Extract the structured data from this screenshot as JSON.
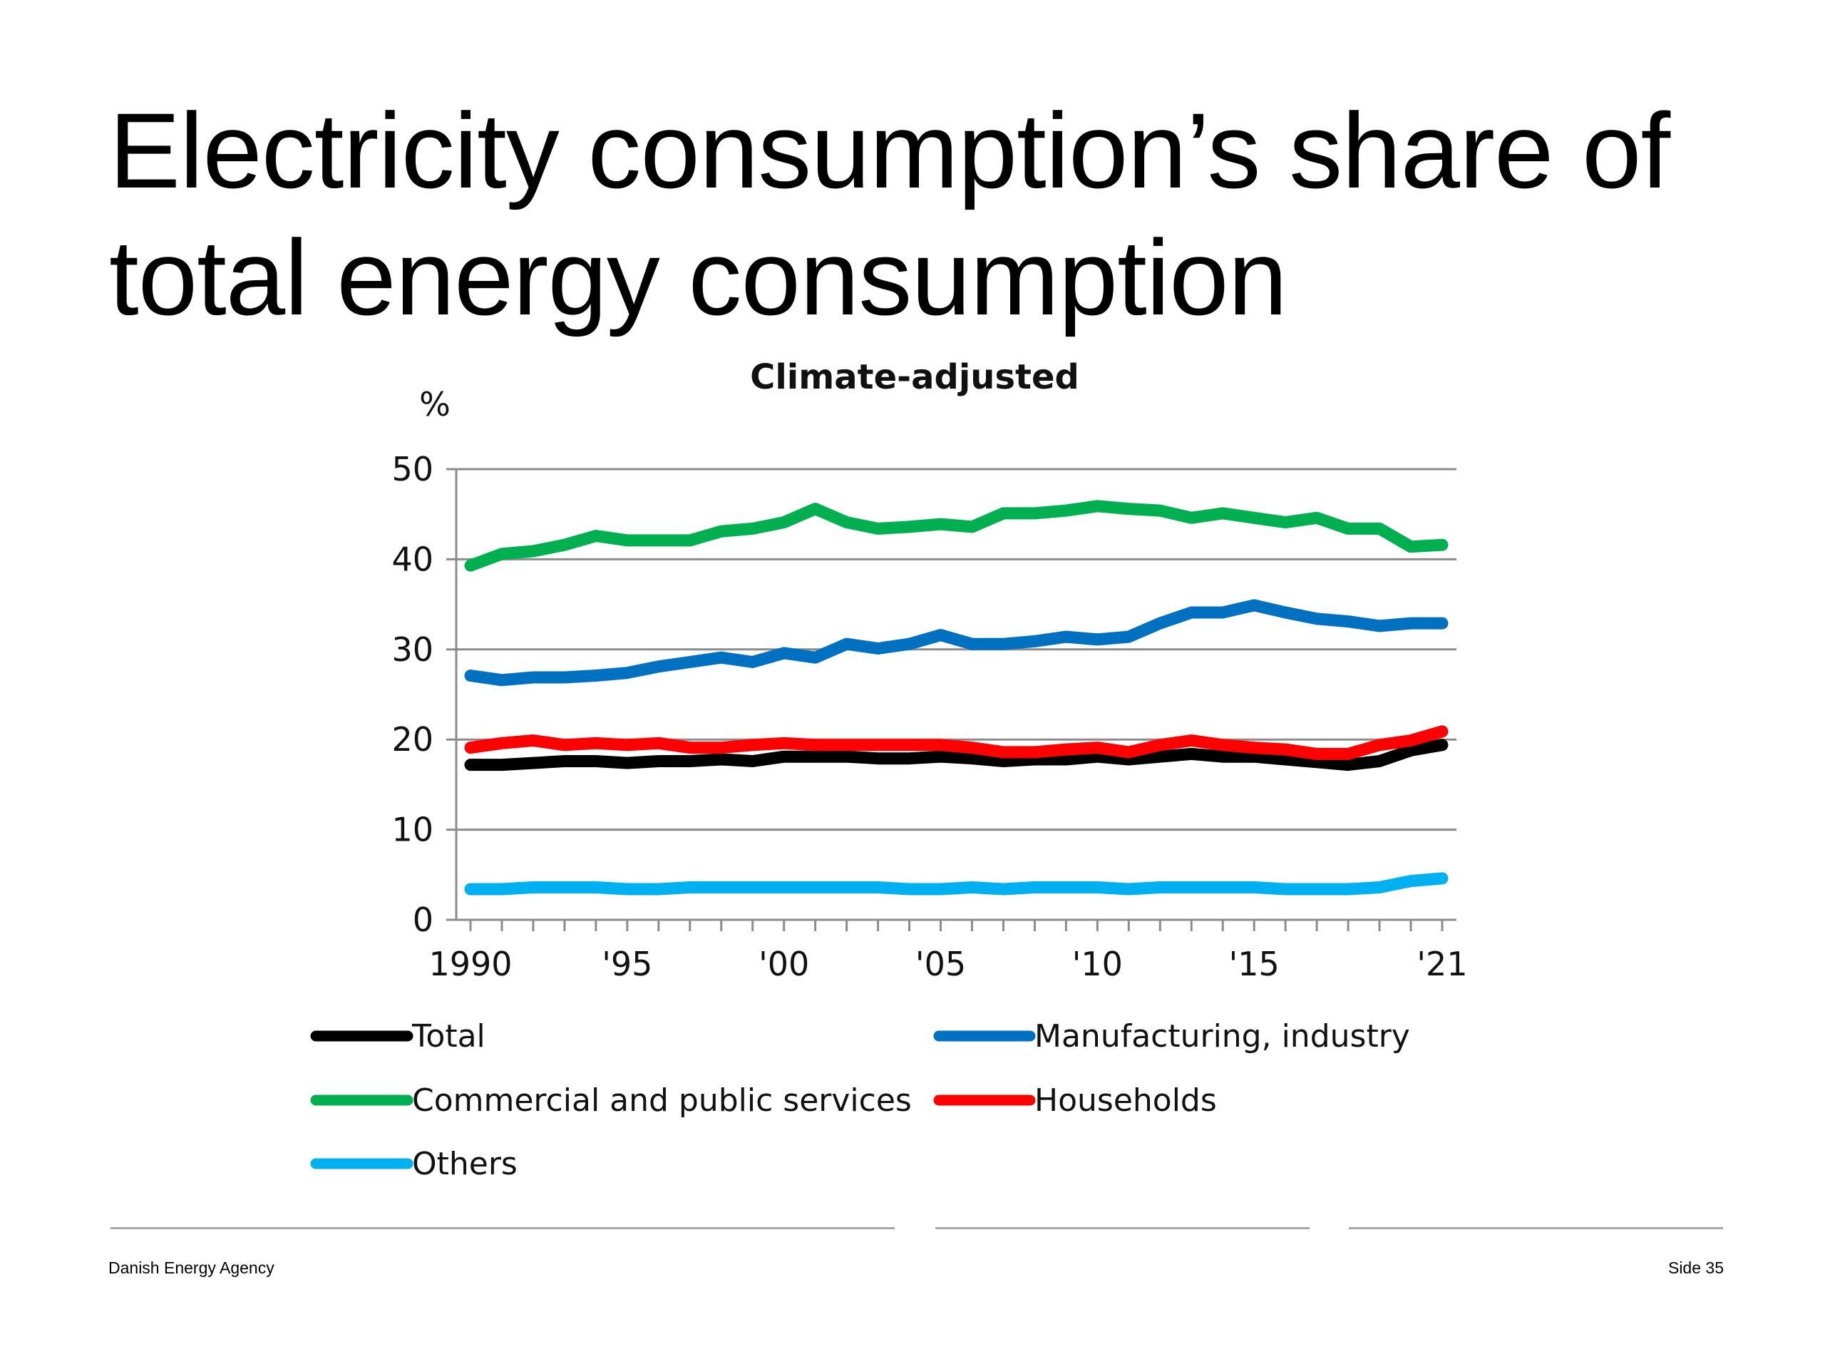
{
  "slide": {
    "title_line1": "Electricity consumption’s share of",
    "title_line2": "total energy consumption"
  },
  "footer": {
    "organization": "Danish Energy Agency",
    "page": "Side 35"
  },
  "chart_data": {
    "type": "line",
    "title": "Climate-adjusted",
    "ylabel": "%",
    "xlabel": "",
    "ylim": [
      0,
      50
    ],
    "yticks": [
      0,
      10,
      20,
      30,
      40,
      50
    ],
    "xlim": [
      1990,
      2021
    ],
    "xtick_years": [
      1990,
      1995,
      2000,
      2005,
      2010,
      2015,
      2021
    ],
    "xtick_labels": [
      "1990",
      "'95",
      "'00",
      "'05",
      "'10",
      "'15",
      "'21"
    ],
    "x": [
      1990,
      1991,
      1992,
      1993,
      1994,
      1995,
      1996,
      1997,
      1998,
      1999,
      2000,
      2001,
      2002,
      2003,
      2004,
      2005,
      2006,
      2007,
      2008,
      2009,
      2010,
      2011,
      2012,
      2013,
      2014,
      2015,
      2016,
      2017,
      2018,
      2019,
      2020,
      2021
    ],
    "grid": "horizontal",
    "legend_position": "bottom",
    "series": [
      {
        "name": "Total",
        "color": "#000000",
        "values": [
          17.2,
          17.2,
          17.4,
          17.6,
          17.6,
          17.4,
          17.6,
          17.6,
          17.8,
          17.6,
          18.1,
          18.1,
          18.1,
          17.9,
          17.9,
          18.1,
          17.9,
          17.6,
          17.8,
          17.8,
          18.1,
          17.8,
          18.1,
          18.4,
          18.1,
          18.1,
          17.8,
          17.5,
          17.2,
          17.6,
          18.8,
          19.4
        ]
      },
      {
        "name": "Manufacturing, industry",
        "color": "#0070c0",
        "values": [
          27.1,
          26.6,
          26.9,
          26.9,
          27.1,
          27.4,
          28.1,
          28.6,
          29.1,
          28.6,
          29.6,
          29.1,
          30.6,
          30.1,
          30.6,
          31.6,
          30.6,
          30.6,
          30.9,
          31.4,
          31.1,
          31.4,
          32.9,
          34.1,
          34.1,
          34.9,
          34.1,
          33.4,
          33.1,
          32.6,
          32.9,
          32.9
        ]
      },
      {
        "name": "Commercial and public services",
        "color": "#00b050",
        "values": [
          39.3,
          40.6,
          40.9,
          41.6,
          42.6,
          42.1,
          42.1,
          42.1,
          43.1,
          43.4,
          44.1,
          45.6,
          44.1,
          43.4,
          43.6,
          43.9,
          43.6,
          45.1,
          45.1,
          45.4,
          45.9,
          45.6,
          45.4,
          44.6,
          45.1,
          44.6,
          44.1,
          44.6,
          43.4,
          43.4,
          41.4,
          41.6
        ]
      },
      {
        "name": "Households",
        "color": "#ff0000",
        "values": [
          19.1,
          19.6,
          19.9,
          19.4,
          19.6,
          19.4,
          19.6,
          19.1,
          19.1,
          19.4,
          19.6,
          19.4,
          19.4,
          19.4,
          19.4,
          19.4,
          19.1,
          18.6,
          18.6,
          18.9,
          19.1,
          18.6,
          19.4,
          19.9,
          19.4,
          19.1,
          18.9,
          18.4,
          18.4,
          19.4,
          19.9,
          20.9
        ]
      },
      {
        "name": "Others",
        "color": "#00b0f0",
        "values": [
          3.4,
          3.4,
          3.6,
          3.6,
          3.6,
          3.4,
          3.4,
          3.6,
          3.6,
          3.6,
          3.6,
          3.6,
          3.6,
          3.6,
          3.4,
          3.4,
          3.6,
          3.4,
          3.6,
          3.6,
          3.6,
          3.4,
          3.6,
          3.6,
          3.6,
          3.6,
          3.4,
          3.4,
          3.4,
          3.6,
          4.3,
          4.6
        ]
      }
    ]
  }
}
